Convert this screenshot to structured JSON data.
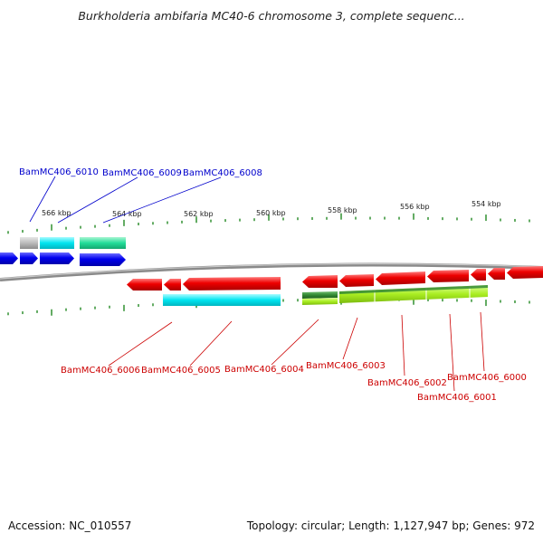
{
  "title": "Burkholderia ambifaria MC40-6 chromosome 3, complete sequenc...",
  "accession": "Accession: NC_010557",
  "summary": "Topology: circular; Length: 1,127,947 bp; Genes: 972",
  "scale_labels": [
    "566 kbp",
    "564 kbp",
    "562 kbp",
    "560 kbp",
    "558 kbp",
    "556 kbp",
    "554 kbp"
  ],
  "genes": [
    {
      "id": "BamMC406_6010",
      "strand": "top",
      "color": "#0000cc"
    },
    {
      "id": "BamMC406_6009",
      "strand": "top",
      "color": "#0000cc"
    },
    {
      "id": "BamMC406_6008",
      "strand": "top",
      "color": "#0000cc"
    },
    {
      "id": "BamMC406_6006",
      "strand": "bottom",
      "color": "#cc0000"
    },
    {
      "id": "BamMC406_6005",
      "strand": "bottom",
      "color": "#cc0000"
    },
    {
      "id": "BamMC406_6004",
      "strand": "bottom",
      "color": "#cc0000"
    },
    {
      "id": "BamMC406_6003",
      "strand": "bottom",
      "color": "#cc0000"
    },
    {
      "id": "BamMC406_6002",
      "strand": "bottom",
      "color": "#cc0000"
    },
    {
      "id": "BamMC406_6001",
      "strand": "bottom",
      "color": "#cc0000"
    },
    {
      "id": "BamMC406_6000",
      "strand": "bottom",
      "color": "#cc0000"
    }
  ],
  "colors": {
    "forward_gene": "#0000ee",
    "reverse_gene": "#ee0000",
    "tick": "#228822",
    "backbone": "#888888",
    "cog_gray": "#bbbbbb",
    "cog_cyan": "#00e5f0",
    "cog_teal": "#22dd99",
    "cog_darkgreen": "#338833",
    "cog_lime": "#aaee22"
  }
}
